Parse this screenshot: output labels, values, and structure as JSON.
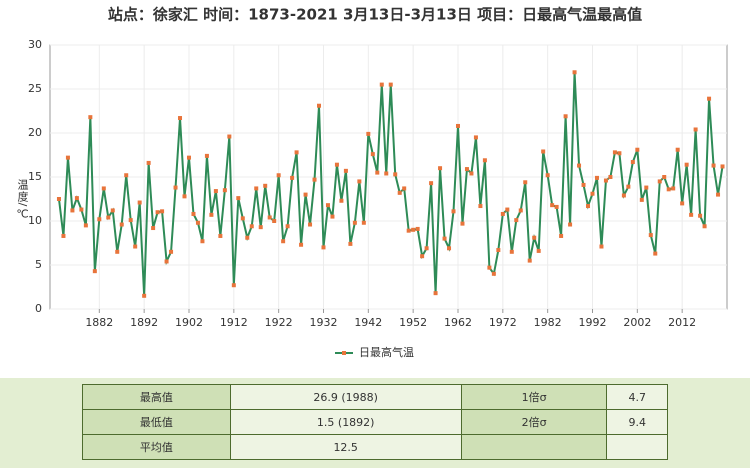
{
  "chart_data": {
    "type": "line",
    "title": "站点：徐家汇 时间：1873-2021  3月13日-3月13日 项目：日最高气温最高值",
    "y_label": "温度/℃",
    "x": [
      1873,
      1874,
      1875,
      1876,
      1877,
      1878,
      1879,
      1880,
      1881,
      1882,
      1883,
      1884,
      1885,
      1886,
      1887,
      1888,
      1889,
      1890,
      1891,
      1892,
      1893,
      1894,
      1895,
      1896,
      1897,
      1898,
      1899,
      1900,
      1901,
      1902,
      1903,
      1904,
      1905,
      1906,
      1907,
      1908,
      1909,
      1910,
      1911,
      1912,
      1913,
      1914,
      1915,
      1916,
      1917,
      1918,
      1919,
      1920,
      1921,
      1922,
      1923,
      1924,
      1925,
      1926,
      1927,
      1928,
      1929,
      1930,
      1931,
      1932,
      1933,
      1934,
      1935,
      1936,
      1937,
      1938,
      1939,
      1940,
      1941,
      1942,
      1943,
      1944,
      1945,
      1946,
      1947,
      1948,
      1949,
      1950,
      1951,
      1952,
      1953,
      1954,
      1955,
      1956,
      1957,
      1958,
      1959,
      1960,
      1961,
      1962,
      1963,
      1964,
      1965,
      1966,
      1967,
      1968,
      1969,
      1970,
      1971,
      1972,
      1973,
      1974,
      1975,
      1976,
      1977,
      1978,
      1979,
      1980,
      1981,
      1982,
      1983,
      1984,
      1985,
      1986,
      1987,
      1988,
      1989,
      1990,
      1991,
      1992,
      1993,
      1994,
      1995,
      1996,
      1997,
      1998,
      1999,
      2000,
      2001,
      2002,
      2003,
      2004,
      2005,
      2006,
      2007,
      2008,
      2009,
      2010,
      2011,
      2012,
      2013,
      2014,
      2015,
      2016,
      2017,
      2018,
      2019,
      2020,
      2021
    ],
    "series": [
      {
        "name": "日最高气温",
        "color": "#2e8b57",
        "marker_color": "#e8743b",
        "values": [
          12.5,
          8.3,
          17.2,
          11.2,
          12.6,
          11.3,
          9.5,
          21.8,
          4.3,
          10.2,
          13.7,
          10.4,
          11.2,
          6.5,
          9.6,
          15.2,
          10.1,
          7.1,
          12.1,
          1.5,
          16.6,
          9.2,
          11.0,
          11.1,
          5.4,
          6.5,
          13.8,
          21.7,
          12.8,
          17.2,
          10.8,
          9.8,
          7.7,
          17.4,
          10.7,
          13.4,
          8.3,
          13.5,
          19.6,
          2.7,
          12.6,
          10.3,
          8.1,
          9.4,
          13.7,
          9.3,
          14.0,
          10.4,
          10.0,
          15.2,
          7.7,
          9.4,
          14.9,
          17.8,
          7.3,
          13.0,
          9.6,
          14.7,
          23.1,
          7.0,
          11.8,
          10.5,
          16.4,
          12.3,
          15.7,
          7.4,
          9.8,
          14.5,
          9.8,
          19.9,
          17.6,
          15.5,
          25.5,
          15.4,
          25.5,
          15.3,
          13.2,
          13.7,
          8.9,
          9.0,
          9.1,
          6.0,
          6.9,
          14.3,
          1.8,
          16.0,
          8.0,
          6.9,
          11.1,
          20.8,
          9.7,
          15.9,
          15.4,
          19.5,
          11.7,
          16.9,
          4.7,
          4.0,
          6.7,
          10.8,
          11.3,
          6.5,
          10.1,
          11.2,
          14.4,
          5.5,
          8.1,
          6.6,
          17.9,
          15.2,
          11.8,
          11.6,
          8.3,
          21.9,
          9.6,
          26.9,
          16.3,
          14.1,
          11.7,
          13.1,
          14.9,
          7.1,
          14.6,
          15.0,
          17.8,
          17.7,
          12.9,
          13.9,
          16.7,
          18.1,
          12.4,
          13.8,
          8.4,
          6.3,
          14.5,
          15.0,
          13.6,
          13.7,
          18.1,
          12.0,
          16.4,
          10.7,
          20.4,
          10.6,
          9.4,
          23.9,
          16.3,
          13.0,
          16.2
        ]
      }
    ],
    "xlim": [
      1871,
      2022
    ],
    "xticks": [
      1882,
      1892,
      1902,
      1912,
      1922,
      1932,
      1942,
      1952,
      1962,
      1972,
      1982,
      1992,
      2002,
      2012
    ],
    "ylim": [
      0,
      30
    ],
    "yticks": [
      0,
      5,
      10,
      15,
      20,
      25,
      30
    ],
    "grid": true,
    "legend": "bottom"
  },
  "table": {
    "rows": [
      [
        "最高值",
        "26.9 (1988)",
        "1倍σ",
        "4.7"
      ],
      [
        "最低值",
        "1.5 (1892)",
        "2倍σ",
        "9.4"
      ],
      [
        "平均值",
        "12.5"
      ]
    ]
  }
}
